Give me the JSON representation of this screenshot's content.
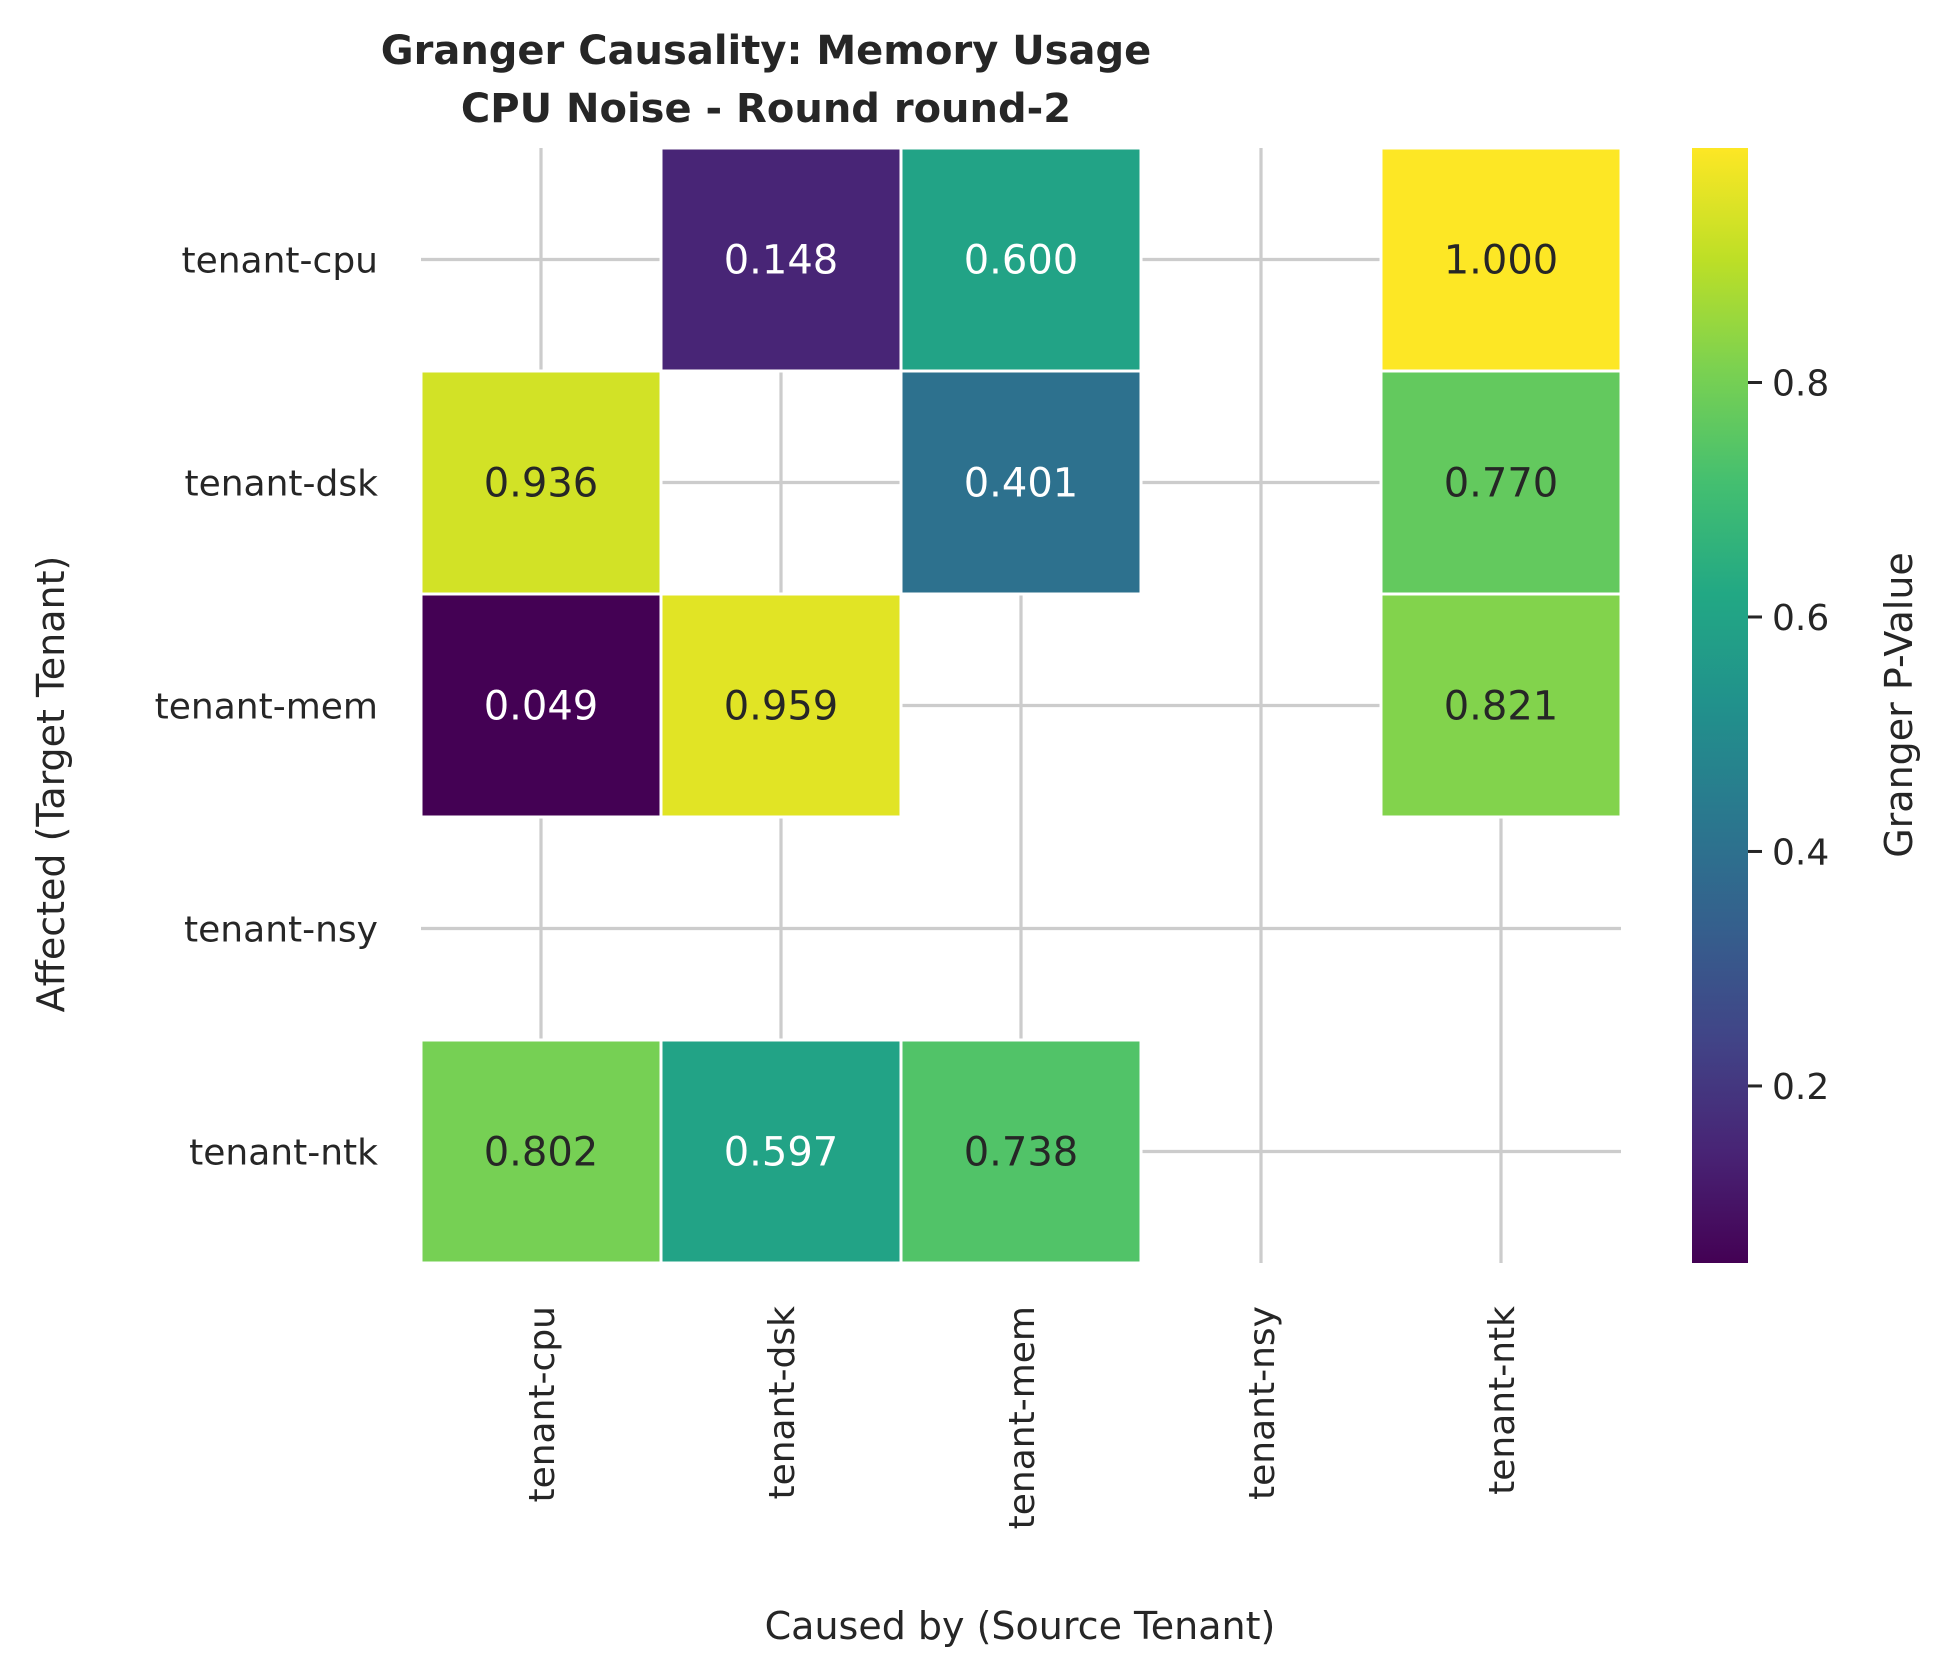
{
  "chart_data": {
    "type": "heatmap",
    "title": "Granger Causality: Memory Usage",
    "subtitle": "CPU Noise - Round round-2",
    "xlabel": "Caused by (Source Tenant)",
    "ylabel": "Affected (Target Tenant)",
    "x_categories": [
      "tenant-cpu",
      "tenant-dsk",
      "tenant-mem",
      "tenant-nsy",
      "tenant-ntk"
    ],
    "y_categories": [
      "tenant-cpu",
      "tenant-dsk",
      "tenant-mem",
      "tenant-nsy",
      "tenant-ntk"
    ],
    "values": [
      [
        null,
        0.148,
        0.6,
        null,
        1.0
      ],
      [
        0.936,
        null,
        0.401,
        null,
        0.77
      ],
      [
        0.049,
        0.959,
        null,
        null,
        0.821
      ],
      [
        null,
        null,
        null,
        null,
        null
      ],
      [
        0.802,
        0.597,
        0.738,
        null,
        null
      ]
    ],
    "value_labels": [
      [
        null,
        "0.148",
        "0.600",
        null,
        "1.000"
      ],
      [
        "0.936",
        null,
        "0.401",
        null,
        "0.770"
      ],
      [
        "0.049",
        "0.959",
        null,
        null,
        "0.821"
      ],
      [
        null,
        null,
        null,
        null,
        null
      ],
      [
        "0.802",
        "0.597",
        "0.738",
        null,
        null
      ]
    ],
    "colormap": "viridis",
    "colorbar": {
      "label": "Granger P-Value",
      "range": [
        0.049,
        1.0
      ],
      "ticks": [
        0.2,
        0.4,
        0.6,
        0.8
      ],
      "tick_labels": [
        "0.2",
        "0.4",
        "0.6",
        "0.8"
      ]
    },
    "grid": true
  }
}
